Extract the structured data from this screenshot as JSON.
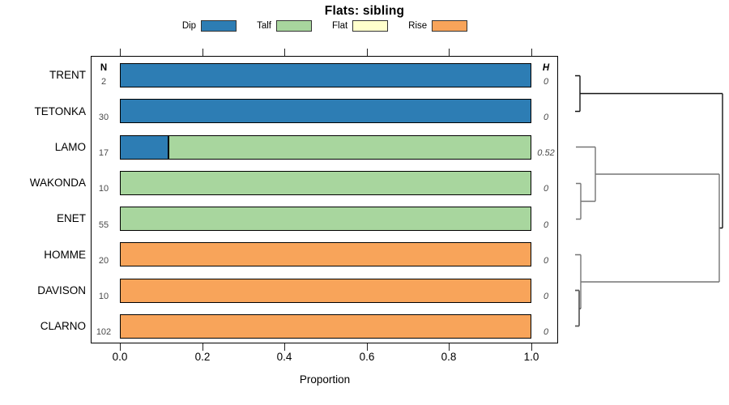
{
  "title": "Flats: sibling",
  "legend": {
    "items": [
      {
        "label": "Dip",
        "color": "#2d7db4"
      },
      {
        "label": "Talf",
        "color": "#a8d69e"
      },
      {
        "label": "Flat",
        "color": "#ffffcc"
      },
      {
        "label": "Rise",
        "color": "#f8a45a"
      }
    ]
  },
  "columns": {
    "n_header": "N",
    "h_header": "H"
  },
  "axis": {
    "xlabel": "Proportion",
    "ticks": [
      "0.0",
      "0.2",
      "0.4",
      "0.6",
      "0.8",
      "1.0"
    ]
  },
  "colors": {
    "dip": "#2d7db4",
    "talf": "#a8d69e",
    "flat": "#ffffcc",
    "rise": "#f8a45a"
  },
  "rows": [
    {
      "name": "TRENT",
      "n": "2",
      "h": "0",
      "dip": 1,
      "talf": 0,
      "flat": 0,
      "rise": 0
    },
    {
      "name": "TETONKA",
      "n": "30",
      "h": "0",
      "dip": 1,
      "talf": 0,
      "flat": 0,
      "rise": 0
    },
    {
      "name": "LAMO",
      "n": "17",
      "h": "0.52",
      "dip": 0.118,
      "talf": 0.882,
      "flat": 0,
      "rise": 0
    },
    {
      "name": "WAKONDA",
      "n": "10",
      "h": "0",
      "dip": 0,
      "talf": 1,
      "flat": 0,
      "rise": 0
    },
    {
      "name": "ENET",
      "n": "55",
      "h": "0",
      "dip": 0,
      "talf": 1,
      "flat": 0,
      "rise": 0
    },
    {
      "name": "HOMME",
      "n": "20",
      "h": "0",
      "dip": 0,
      "talf": 0,
      "flat": 0,
      "rise": 1
    },
    {
      "name": "DAVISON",
      "n": "10",
      "h": "0",
      "dip": 0,
      "talf": 0,
      "flat": 0,
      "rise": 1
    },
    {
      "name": "CLARNO",
      "n": "102",
      "h": "0",
      "dip": 0,
      "talf": 0,
      "flat": 0,
      "rise": 1
    }
  ],
  "chart_data": {
    "type": "bar",
    "subtype": "horizontal-stacked-proportion",
    "title": "Flats: sibling",
    "xlabel": "Proportion",
    "xlim": [
      0,
      1
    ],
    "x_ticks": [
      0.0,
      0.2,
      0.4,
      0.6,
      0.8,
      1.0
    ],
    "categories": [
      "TRENT",
      "TETONKA",
      "LAMO",
      "WAKONDA",
      "ENET",
      "HOMME",
      "DAVISON",
      "CLARNO"
    ],
    "series": [
      {
        "name": "Dip",
        "color": "#2d7db4",
        "values": [
          1,
          1,
          0.118,
          0,
          0,
          0,
          0,
          0
        ]
      },
      {
        "name": "Talf",
        "color": "#a8d69e",
        "values": [
          0,
          0,
          0.882,
          1,
          1,
          0,
          0,
          0
        ]
      },
      {
        "name": "Flat",
        "color": "#ffffcc",
        "values": [
          0,
          0,
          0,
          0,
          0,
          0,
          0,
          0
        ]
      },
      {
        "name": "Rise",
        "color": "#f8a45a",
        "values": [
          0,
          0,
          0,
          0,
          0,
          1,
          1,
          1
        ]
      }
    ],
    "N_values": [
      2,
      30,
      17,
      10,
      55,
      20,
      10,
      102
    ],
    "H_values": [
      0,
      0,
      0.52,
      0,
      0,
      0,
      0,
      0
    ],
    "legend_position": "top",
    "grid": false,
    "dendrogram": {
      "side": "right",
      "structure": "((TRENT,TETONKA),((LAMO,(WAKONDA,ENET)),(HOMME,(DAVISON,CLARNO))))"
    }
  }
}
